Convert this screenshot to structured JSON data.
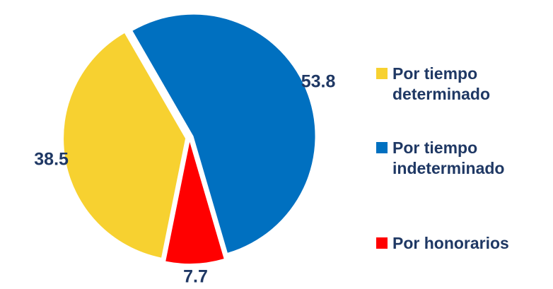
{
  "chart_data": {
    "type": "pie",
    "categories": [
      "Por tiempo determinado",
      "Por tiempo indeterminado",
      "Por honorarios"
    ],
    "values": [
      38.5,
      53.8,
      7.7
    ],
    "colors": [
      "#f7d130",
      "#0070c0",
      "#ff0000"
    ],
    "legend": "right"
  }
}
